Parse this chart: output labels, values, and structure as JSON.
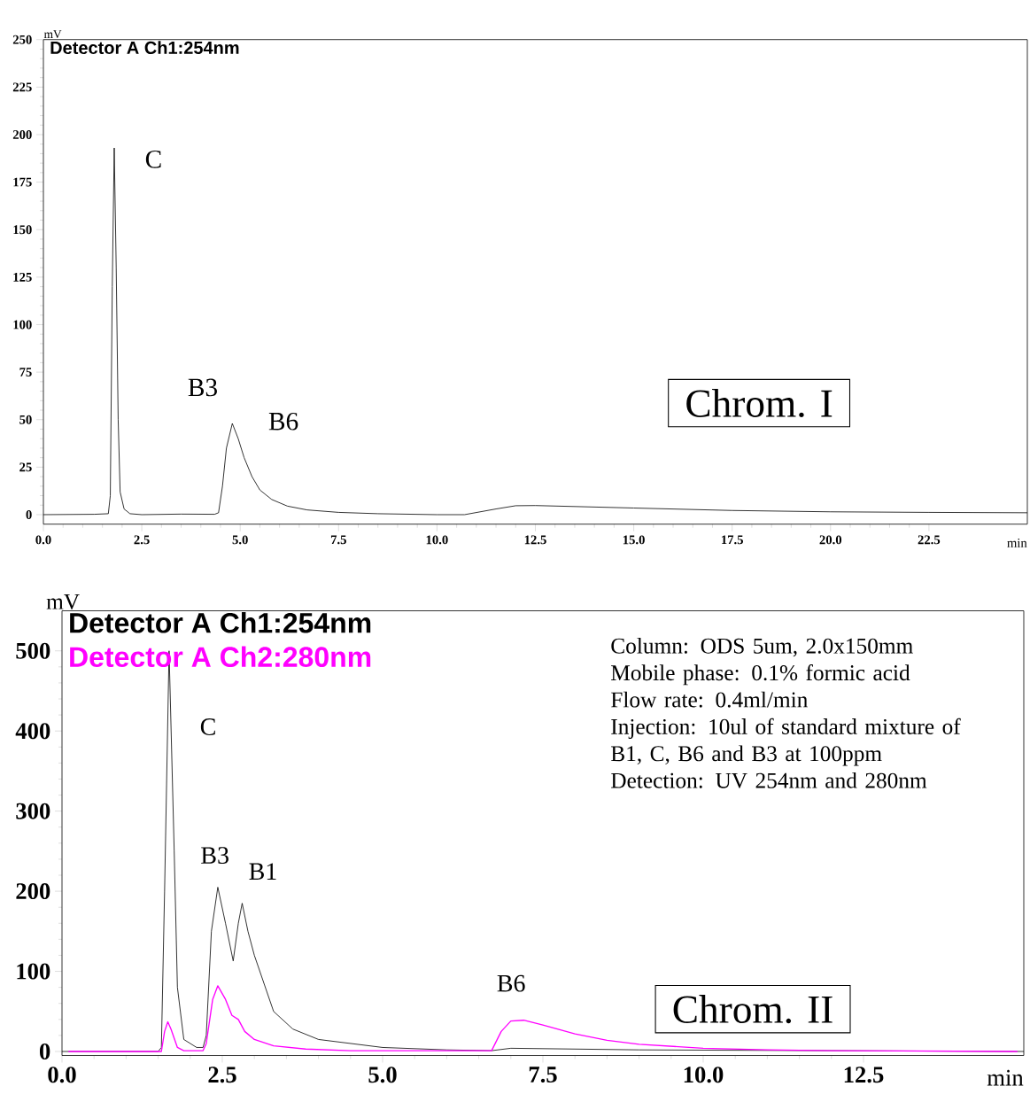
{
  "chart_data": [
    {
      "type": "line",
      "xlabel": "min",
      "ylabel": "mV",
      "legend": "top left",
      "xlim": [
        0,
        25
      ],
      "ylim": [
        -5,
        250
      ],
      "xticks": [
        {
          "value": 0,
          "label": "0.0"
        },
        2.5,
        {
          "value": 5,
          "label": "5.0"
        },
        7.5,
        {
          "value": 10,
          "label": "10.0"
        },
        12.5,
        {
          "value": 15,
          "label": "15.0"
        },
        17.5,
        {
          "value": 20,
          "label": "20.0"
        },
        22.5
      ],
      "yticks": [
        0,
        25,
        50,
        75,
        100,
        125,
        150,
        175,
        200,
        225,
        250
      ],
      "series": [
        {
          "name": "Detector A Ch1:254nm",
          "color": "#000000",
          "x": [
            0,
            1.3,
            1.65,
            1.7,
            1.75,
            1.8,
            1.85,
            1.9,
            1.95,
            2.05,
            2.2,
            2.5,
            3.5,
            4.35,
            4.45,
            4.55,
            4.65,
            4.8,
            4.95,
            5.1,
            5.3,
            5.5,
            5.8,
            6.2,
            6.7,
            7.5,
            8.5,
            10,
            10.7,
            11.5,
            12,
            12.5,
            15,
            17.5,
            20,
            22.5,
            25
          ],
          "values": [
            0,
            0.2,
            0.5,
            10,
            120,
            193,
            130,
            50,
            12,
            3,
            0.5,
            0,
            0.3,
            0.2,
            1,
            15,
            35,
            48,
            40,
            30,
            20,
            13,
            8,
            4.5,
            2.5,
            1.2,
            0.5,
            0,
            0,
            3,
            4.7,
            4.8,
            3.5,
            2.2,
            1.5,
            1.2,
            1
          ]
        }
      ],
      "annotations": [
        "Chrom. I",
        "C",
        "B3",
        "B6"
      ]
    },
    {
      "type": "line",
      "xlabel": "min",
      "ylabel": "mV",
      "legend": "top left",
      "xlim": [
        0,
        15
      ],
      "ylim": [
        -5,
        550
      ],
      "xticks": [
        {
          "value": 0,
          "label": "0.0"
        },
        2.5,
        {
          "value": 5,
          "label": "5.0"
        },
        7.5,
        {
          "value": 10,
          "label": "10.0"
        },
        12.5
      ],
      "yticks": [
        0,
        100,
        200,
        300,
        400,
        500
      ],
      "series": [
        {
          "name": "Detector A Ch1:254nm",
          "color": "#000000",
          "x": [
            0,
            1.5,
            1.55,
            1.6,
            1.67,
            1.75,
            1.8,
            1.9,
            2.1,
            2.2,
            2.25,
            2.33,
            2.43,
            2.55,
            2.67,
            2.75,
            2.81,
            2.9,
            3.0,
            3.3,
            3.6,
            4.0,
            5.0,
            6.0,
            6.7,
            7.0,
            9.0,
            15
          ],
          "values": [
            0,
            0,
            5,
            200,
            500,
            250,
            80,
            15,
            5,
            5,
            20,
            150,
            205,
            160,
            113,
            160,
            185,
            150,
            120,
            50,
            28,
            15,
            5,
            2,
            1,
            4,
            2,
            0
          ]
        },
        {
          "name": "Detector A Ch2:280nm",
          "color": "#ff00ff",
          "x": [
            0.1,
            1.55,
            1.6,
            1.65,
            1.7,
            1.8,
            1.9,
            2.2,
            2.25,
            2.35,
            2.43,
            2.55,
            2.65,
            2.75,
            2.85,
            3.0,
            3.3,
            3.8,
            4.5,
            6.7,
            6.85,
            7.0,
            7.2,
            7.5,
            8.0,
            8.5,
            9.0,
            10,
            11,
            12,
            14.9
          ],
          "values": [
            0,
            0,
            25,
            37,
            28,
            5,
            1,
            1,
            10,
            65,
            82,
            65,
            45,
            40,
            25,
            15,
            7,
            3,
            1,
            1,
            25,
            38,
            39,
            33,
            22,
            14,
            9,
            4,
            2,
            1,
            0
          ]
        }
      ],
      "annotations": [
        "Chrom. II",
        "Column: ODS 5um, 2.0x150mm",
        "Mobile phase: 0.1% formic acid",
        "Flow rate: 0.4ml/min",
        "Injection: 10ul of standard mixture of B1, C, B6 and B3 at 100ppm",
        "Detection: UV 254nm and 280nm",
        "C",
        "B3",
        "B1",
        "B6"
      ]
    }
  ]
}
